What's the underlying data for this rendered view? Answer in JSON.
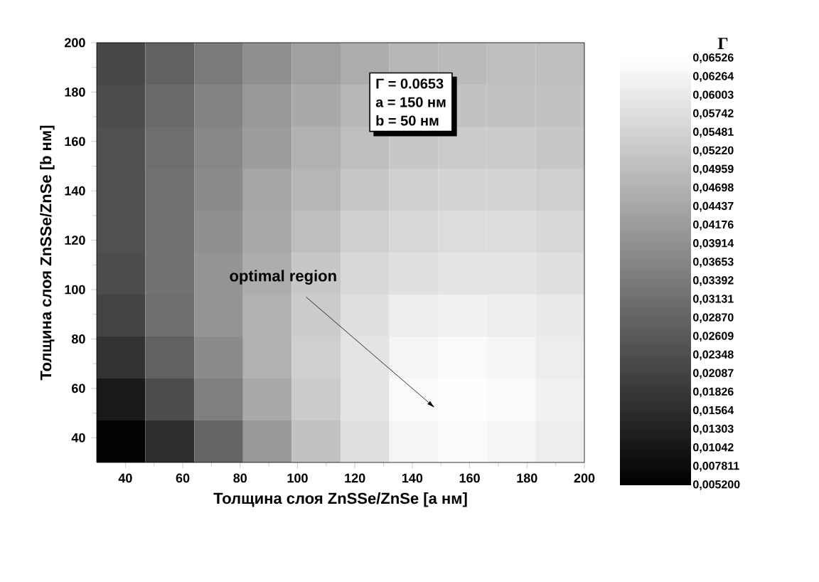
{
  "chart_data": {
    "type": "heatmap",
    "xlabel": "Толщина слоя ZnSSe/ZnSe [a нм]",
    "ylabel": "Толщина слоя ZnSSe/ZnSe [b нм]",
    "clabel": "Γ",
    "xlim": [
      30,
      200
    ],
    "ylim": [
      30,
      200
    ],
    "xticks": [
      40,
      60,
      80,
      100,
      120,
      140,
      160,
      180,
      200
    ],
    "yticks": [
      40,
      60,
      80,
      100,
      120,
      140,
      160,
      180,
      200
    ],
    "cells": [
      [
        0.022,
        0.028,
        0.034,
        0.039,
        0.043,
        0.046,
        0.048,
        0.049,
        0.05,
        0.05
      ],
      [
        0.023,
        0.03,
        0.036,
        0.041,
        0.045,
        0.048,
        null,
        0.051,
        0.051,
        0.051
      ],
      [
        0.024,
        0.031,
        0.037,
        0.042,
        0.047,
        0.05,
        0.052,
        0.053,
        0.053,
        0.052
      ],
      [
        0.024,
        0.032,
        0.038,
        0.044,
        0.048,
        0.052,
        0.054,
        0.055,
        0.055,
        0.054
      ],
      [
        0.024,
        0.032,
        0.039,
        0.045,
        0.05,
        0.054,
        0.056,
        0.057,
        0.057,
        0.056
      ],
      [
        0.023,
        0.032,
        0.04,
        0.046,
        0.052,
        0.056,
        0.058,
        0.059,
        0.059,
        0.058
      ],
      [
        0.021,
        0.031,
        0.04,
        0.047,
        0.053,
        0.058,
        0.061,
        0.062,
        0.061,
        0.06
      ],
      [
        0.017,
        0.028,
        0.038,
        0.047,
        0.054,
        0.059,
        0.063,
        0.064,
        0.063,
        0.061
      ],
      [
        0.011,
        0.023,
        0.035,
        0.045,
        0.053,
        0.059,
        0.064,
        0.065,
        0.064,
        0.062
      ],
      [
        0.006,
        0.016,
        0.029,
        0.041,
        0.051,
        0.058,
        0.063,
        0.064,
        0.063,
        0.061
      ]
    ],
    "clim": [
      0.0052,
      0.06526
    ],
    "cticks": [
      {
        "value": 0.0052,
        "label": "0,005200"
      },
      {
        "value": 0.007811,
        "label": "0,007811"
      },
      {
        "value": 0.01042,
        "label": "0,01042"
      },
      {
        "value": 0.01303,
        "label": "0,01303"
      },
      {
        "value": 0.01564,
        "label": "0,01564"
      },
      {
        "value": 0.01826,
        "label": "0,01826"
      },
      {
        "value": 0.02087,
        "label": "0,02087"
      },
      {
        "value": 0.02348,
        "label": "0,02348"
      },
      {
        "value": 0.02609,
        "label": "0,02609"
      },
      {
        "value": 0.0287,
        "label": "0,02870"
      },
      {
        "value": 0.03131,
        "label": "0,03131"
      },
      {
        "value": 0.03392,
        "label": "0,03392"
      },
      {
        "value": 0.03653,
        "label": "0,03653"
      },
      {
        "value": 0.03914,
        "label": "0,03914"
      },
      {
        "value": 0.04176,
        "label": "0,04176"
      },
      {
        "value": 0.04437,
        "label": "0,04437"
      },
      {
        "value": 0.04698,
        "label": "0,04698"
      },
      {
        "value": 0.04959,
        "label": "0,04959"
      },
      {
        "value": 0.0522,
        "label": "0,05220"
      },
      {
        "value": 0.05481,
        "label": "0,05481"
      },
      {
        "value": 0.05742,
        "label": "0,05742"
      },
      {
        "value": 0.06003,
        "label": "0,06003"
      },
      {
        "value": 0.06264,
        "label": "0,06264"
      },
      {
        "value": 0.06526,
        "label": "0,06526"
      }
    ],
    "annotations": [
      "optimal region",
      "Γ = 0.0653",
      "a = 150 нм",
      "b = 50 нм"
    ]
  }
}
